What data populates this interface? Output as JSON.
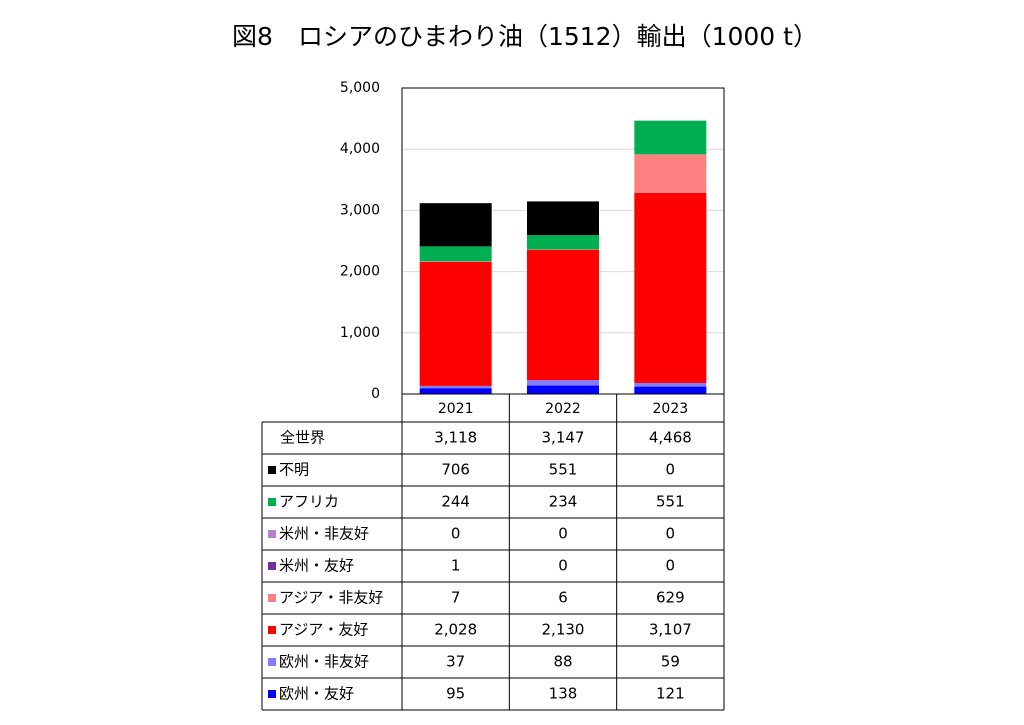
{
  "chart_data": {
    "type": "stacked-bar",
    "title": "図8　ロシアのひまわり油（1512）輸出（1000 t）",
    "categories": [
      "2021",
      "2022",
      "2023"
    ],
    "total": {
      "name": "全世界",
      "values": [
        3118,
        3147,
        4468
      ],
      "value_labels": [
        "3,118",
        "3,147",
        "4,468"
      ]
    },
    "series": [
      {
        "name": "不明",
        "color": "#000000",
        "values": [
          706,
          551,
          0
        ]
      },
      {
        "name": "アフリカ",
        "color": "#00b050",
        "values": [
          244,
          234,
          551
        ]
      },
      {
        "name": "米州・非友好",
        "color": "#b57fd6",
        "values": [
          0,
          0,
          0
        ]
      },
      {
        "name": "米州・友好",
        "color": "#7030a0",
        "values": [
          1,
          0,
          0
        ]
      },
      {
        "name": "アジア・非友好",
        "color": "#ff8080",
        "values": [
          7,
          6,
          629
        ]
      },
      {
        "name": "アジア・友好",
        "color": "#ff0000",
        "values": [
          2028,
          2130,
          3107
        ],
        "value_labels": [
          "2,028",
          "2,130",
          "3,107"
        ]
      },
      {
        "name": "欧州・非友好",
        "color": "#8080ff",
        "values": [
          37,
          88,
          59
        ]
      },
      {
        "name": "欧州・友好",
        "color": "#0000ff",
        "values": [
          95,
          138,
          121
        ]
      }
    ],
    "ylim": [
      0,
      5000
    ],
    "yticks": [
      0,
      {
        "value": 1000,
        "label": "1,000"
      },
      {
        "value": 2000,
        "label": "2,000"
      },
      {
        "value": 3000,
        "label": "3,000"
      },
      {
        "value": 4000,
        "label": "4,000"
      },
      {
        "value": 5000,
        "label": "5,000"
      }
    ],
    "grid": true
  }
}
